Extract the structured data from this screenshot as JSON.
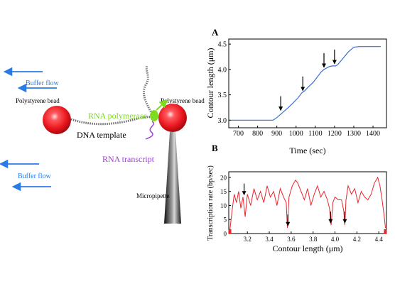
{
  "diagram": {
    "buffer_flow_label": "Buffer flow",
    "left_bead_label": "Polystyrene bead",
    "right_bead_label": "Polystyrene bead",
    "rna_polymerase_label": "RNA polymerase",
    "dna_template_label": "DNA template",
    "rna_transcript_label": "RNA transcript",
    "micropipette_label": "Micropipette",
    "colors": {
      "flow_arrow": "#2a7be4",
      "bead": "#e8141c",
      "polymerase": "#7ddc1f",
      "transcript": "#a03fd6",
      "dna": "#555555"
    }
  },
  "chart_data": [
    {
      "panel": "A",
      "type": "line",
      "xlabel": "Time (sec)",
      "ylabel": "Contour length (μm)",
      "xlim": [
        650,
        1470
      ],
      "ylim": [
        2.85,
        4.6
      ],
      "xticks": [
        700,
        800,
        900,
        1000,
        1100,
        1200,
        1300,
        1400
      ],
      "yticks": [
        3.0,
        3.5,
        4.0,
        4.5
      ],
      "ytick_labels": [
        "3.0",
        "3.5",
        "4.0",
        "4.5"
      ],
      "grid": false,
      "color": "#3a6fd8",
      "x": [
        660,
        700,
        750,
        800,
        850,
        880,
        900,
        930,
        960,
        990,
        1010,
        1030,
        1045,
        1060,
        1090,
        1110,
        1130,
        1145,
        1160,
        1175,
        1190,
        1205,
        1215,
        1240,
        1270,
        1300,
        1330,
        1380,
        1440
      ],
      "y": [
        3.0,
        3.0,
        3.0,
        3.0,
        3.0,
        3.0,
        3.05,
        3.15,
        3.25,
        3.36,
        3.44,
        3.54,
        3.58,
        3.64,
        3.75,
        3.85,
        3.95,
        4.0,
        4.03,
        4.06,
        4.07,
        4.07,
        4.09,
        4.2,
        4.34,
        4.44,
        4.45,
        4.45,
        4.45
      ],
      "arrows_x": [
        920,
        1035,
        1145,
        1200
      ]
    },
    {
      "panel": "B",
      "type": "line",
      "xlabel": "Contour length (μm)",
      "ylabel": "Transcription rate (bp/sec)",
      "xlim": [
        3.03,
        4.47
      ],
      "ylim": [
        0,
        22
      ],
      "xticks": [
        3.2,
        3.4,
        3.6,
        3.8,
        4.0,
        4.2,
        4.4
      ],
      "xtick_labels": [
        "3.2",
        "3.4",
        "3.6",
        "3.8",
        "4.0",
        "4.2",
        "4.4"
      ],
      "yticks": [
        0,
        5,
        10,
        15,
        20
      ],
      "grid": false,
      "color": "#e8252a",
      "x": [
        3.04,
        3.06,
        3.08,
        3.1,
        3.12,
        3.14,
        3.16,
        3.18,
        3.2,
        3.23,
        3.26,
        3.29,
        3.32,
        3.35,
        3.38,
        3.41,
        3.44,
        3.47,
        3.5,
        3.53,
        3.555,
        3.565,
        3.58,
        3.61,
        3.64,
        3.66,
        3.69,
        3.72,
        3.75,
        3.78,
        3.81,
        3.84,
        3.87,
        3.9,
        3.93,
        3.95,
        3.965,
        3.98,
        4.0,
        4.03,
        4.06,
        4.08,
        4.09,
        4.1,
        4.12,
        4.15,
        4.18,
        4.21,
        4.24,
        4.27,
        4.3,
        4.33,
        4.36,
        4.39,
        4.41,
        4.43,
        4.45,
        4.46
      ],
      "y": [
        1,
        8,
        14,
        11,
        15,
        9,
        13,
        6,
        14,
        10,
        16,
        12,
        15,
        11,
        17,
        13,
        15,
        10,
        16,
        13,
        11,
        2,
        13,
        17,
        19,
        18,
        15,
        12,
        16,
        10,
        14,
        17,
        13,
        15,
        12,
        9,
        3,
        11,
        13,
        12,
        12,
        8,
        3,
        12,
        17,
        14,
        16,
        11,
        15,
        13,
        12,
        14,
        18,
        20,
        17,
        12,
        6,
        2
      ],
      "arrows_x": [
        3.17,
        3.57,
        3.96,
        4.09
      ]
    }
  ]
}
